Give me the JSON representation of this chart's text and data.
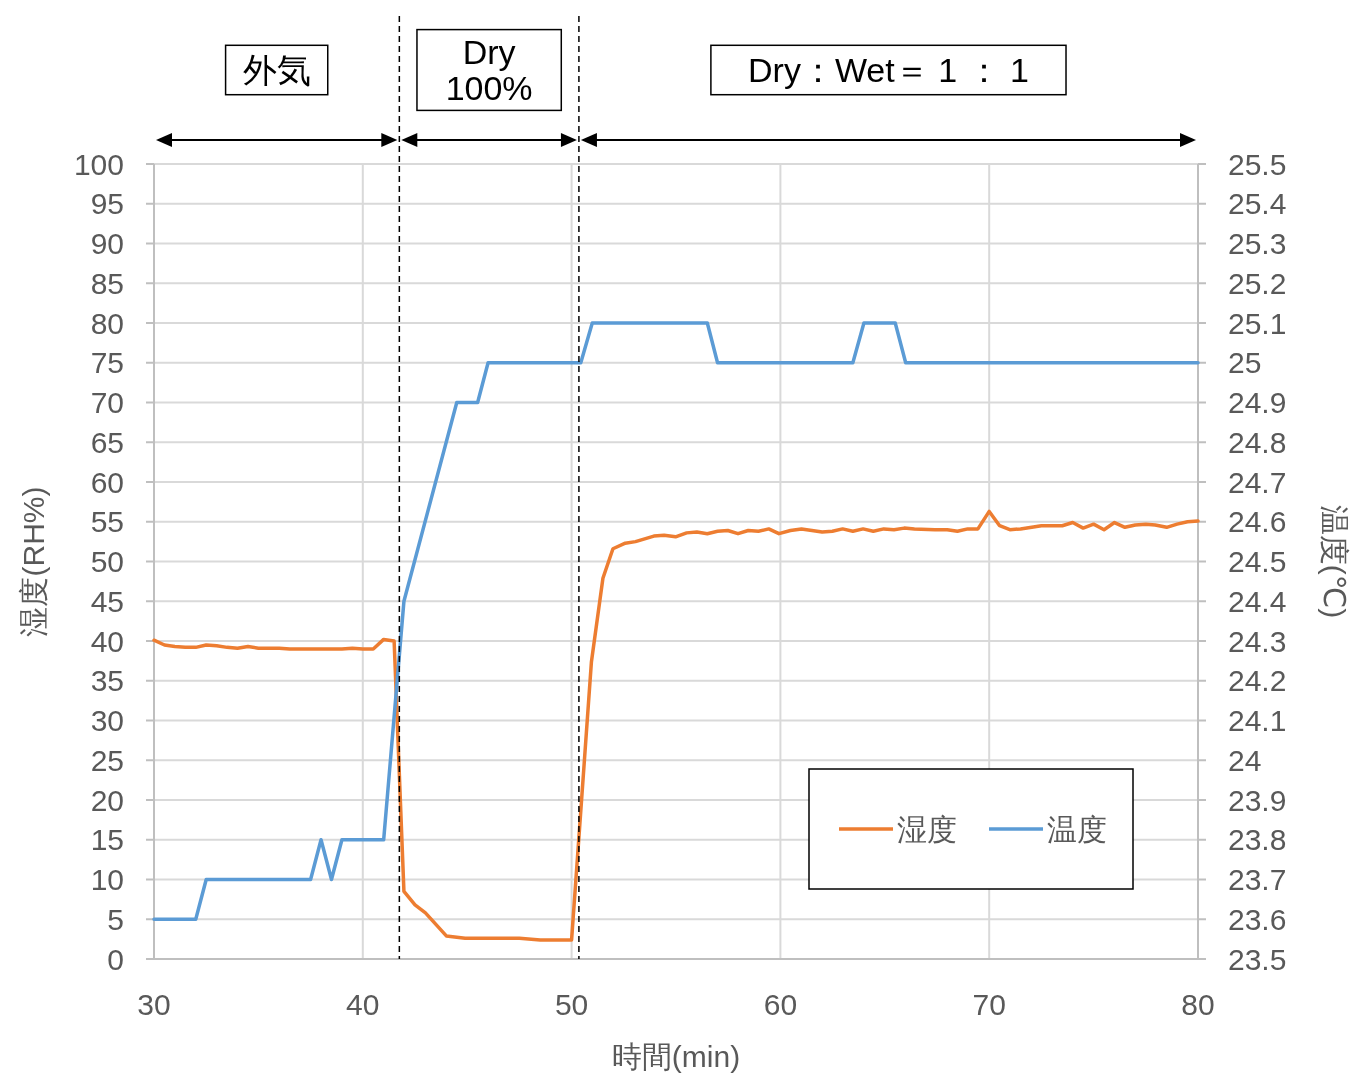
{
  "chart_data": {
    "type": "line",
    "xlabel": "時間(min)",
    "ylabel": "湿度(RH%)",
    "y2label": "温度(℃)",
    "annotations": [
      "外気",
      "Dry\n100%",
      "Dry：Wet＝ 1 ： 1"
    ],
    "xlim": [
      30,
      80
    ],
    "xticks": [
      30,
      40,
      50,
      60,
      70,
      80
    ],
    "ylim": [
      0,
      100
    ],
    "yticks": [
      0,
      5,
      10,
      15,
      20,
      25,
      30,
      35,
      40,
      45,
      50,
      55,
      60,
      65,
      70,
      75,
      80,
      85,
      90,
      95,
      100
    ],
    "y2lim": [
      23.5,
      25.5
    ],
    "y2ticks": [
      23.5,
      23.6,
      23.7,
      23.8,
      23.9,
      24,
      24.1,
      24.2,
      24.3,
      24.4,
      24.5,
      24.6,
      24.7,
      24.8,
      24.9,
      25,
      25.1,
      25.2,
      25.3,
      25.4,
      25.5
    ],
    "grid": true,
    "legend": "bottom right",
    "line_style": "solid",
    "marker": "none",
    "ref_lines": [
      {
        "axis": "x",
        "value": 41.75,
        "color": "#000000",
        "line_style": "dashed"
      },
      {
        "axis": "x",
        "value": 50.35,
        "color": "#000000",
        "line_style": "dashed"
      }
    ],
    "series": [
      {
        "name": "湿度",
        "color": "#ed7d31",
        "x": [
          30,
          30.5,
          31,
          31.5,
          32,
          32.5,
          33,
          33.5,
          34,
          34.5,
          35,
          35.5,
          36,
          36.5,
          37,
          37.5,
          38,
          38.5,
          39,
          39.5,
          40,
          40.5,
          41,
          41.5,
          41.97,
          42.5,
          43,
          44,
          44.9,
          47.5,
          48.5,
          50,
          50.95,
          51.5,
          51.98,
          52.57,
          53.06,
          53.94,
          54.43,
          54.98,
          55.51,
          56,
          56.5,
          56.99,
          57.48,
          57.97,
          58.46,
          58.95,
          59.44,
          59.93,
          60.48,
          61.01,
          61.51,
          62,
          62.49,
          62.98,
          63.47,
          63.96,
          64.45,
          64.95,
          65.44,
          65.93,
          66.42,
          67.4,
          67.99,
          68.48,
          68.97,
          69.46,
          70,
          70.5,
          70.99,
          71.5,
          72.5,
          73.5,
          74,
          74.5,
          75,
          75.5,
          76,
          76.5,
          77,
          77.5,
          77.95,
          78.5,
          79,
          79.5,
          80
        ],
        "values": [
          40.1,
          39.5,
          39.3,
          39.2,
          39.2,
          39.5,
          39.4,
          39.2,
          39.1,
          39.3,
          39.1,
          39.1,
          39.1,
          39,
          39,
          39,
          39,
          39,
          39,
          39.1,
          39,
          39,
          40.2,
          40,
          8.5,
          6.8,
          5.8,
          2.9,
          2.6,
          2.6,
          2.4,
          2.4,
          37.4,
          47.9,
          51.6,
          52.3,
          52.5,
          53.2,
          53.3,
          53.1,
          53.6,
          53.7,
          53.5,
          53.8,
          53.9,
          53.5,
          53.9,
          53.8,
          54.1,
          53.5,
          53.9,
          54.1,
          53.9,
          53.7,
          53.8,
          54.1,
          53.8,
          54.1,
          53.8,
          54.1,
          54,
          54.2,
          54.1,
          54,
          54,
          53.8,
          54.1,
          54.1,
          56.3,
          54.5,
          54,
          54.1,
          54.5,
          54.5,
          54.9,
          54.2,
          54.7,
          54,
          54.9,
          54.3,
          54.6,
          54.7,
          54.6,
          54.3,
          54.7,
          55,
          55.1
        ]
      },
      {
        "name": "温度",
        "color": "#5b9bd5",
        "axis": "y2",
        "x": [
          30,
          32,
          32.5,
          37.5,
          38,
          38.5,
          39,
          41,
          41.97,
          44.5,
          45.5,
          46,
          50.44,
          50.99,
          56.5,
          56.99,
          63.47,
          64,
          65.5,
          66,
          80
        ],
        "values": [
          23.6,
          23.6,
          23.7,
          23.7,
          23.8,
          23.7,
          23.8,
          23.8,
          24.4,
          24.9,
          24.9,
          25,
          25,
          25.1,
          25.1,
          25,
          25,
          25.1,
          25.1,
          25,
          25
        ]
      }
    ]
  }
}
